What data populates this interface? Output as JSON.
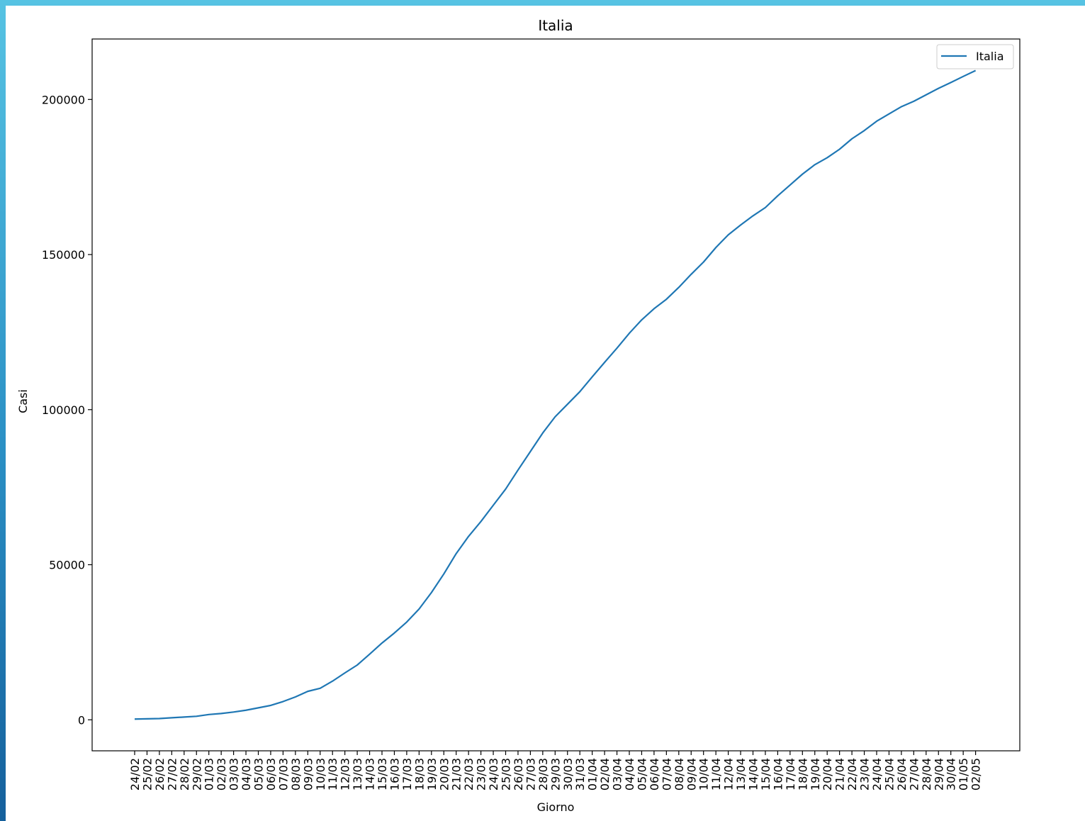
{
  "chart_data": {
    "type": "line",
    "title": "Italia",
    "xlabel": "Giorno",
    "ylabel": "Casi",
    "ylim": [
      -10000,
      219500
    ],
    "yticks": [
      0,
      50000,
      100000,
      150000,
      200000
    ],
    "grid": false,
    "legend_position": "top-right",
    "categories": [
      "24/02",
      "25/02",
      "26/02",
      "27/02",
      "28/02",
      "29/02",
      "01/03",
      "02/03",
      "03/03",
      "04/03",
      "05/03",
      "06/03",
      "07/03",
      "08/03",
      "09/03",
      "10/03",
      "11/03",
      "12/03",
      "13/03",
      "14/03",
      "15/03",
      "16/03",
      "17/03",
      "18/03",
      "19/03",
      "20/03",
      "21/03",
      "22/03",
      "23/03",
      "24/03",
      "25/03",
      "26/03",
      "27/03",
      "28/03",
      "29/03",
      "30/03",
      "31/03",
      "01/04",
      "02/04",
      "03/04",
      "04/04",
      "05/04",
      "06/04",
      "07/04",
      "08/04",
      "09/04",
      "10/04",
      "11/04",
      "12/04",
      "13/04",
      "14/04",
      "15/04",
      "16/04",
      "17/04",
      "18/04",
      "19/04",
      "20/04",
      "21/04",
      "22/04",
      "23/04",
      "24/04",
      "25/04",
      "26/04",
      "27/04",
      "28/04",
      "29/04",
      "30/04",
      "01/05",
      "02/05"
    ],
    "series": [
      {
        "name": "Italia",
        "color": "#1f77b4",
        "values": [
          229,
          322,
          400,
          650,
          888,
          1128,
          1694,
          2036,
          2502,
          3089,
          3858,
          4636,
          5883,
          7375,
          9172,
          10149,
          12462,
          15113,
          17660,
          21157,
          24747,
          27980,
          31506,
          35713,
          41035,
          47021,
          53578,
          59138,
          63927,
          69176,
          74386,
          80539,
          86498,
          92472,
          97689,
          101739,
          105792,
          110574,
          115242,
          119827,
          124632,
          128948,
          132547,
          135586,
          139422,
          143626,
          147577,
          152271,
          156363,
          159516,
          162488,
          165155,
          168941,
          172434,
          175925,
          178972,
          181228,
          183957,
          187327,
          189973,
          192994,
          195351,
          197675,
          199414,
          201505,
          203591,
          205463,
          207428,
          209328
        ]
      }
    ]
  }
}
